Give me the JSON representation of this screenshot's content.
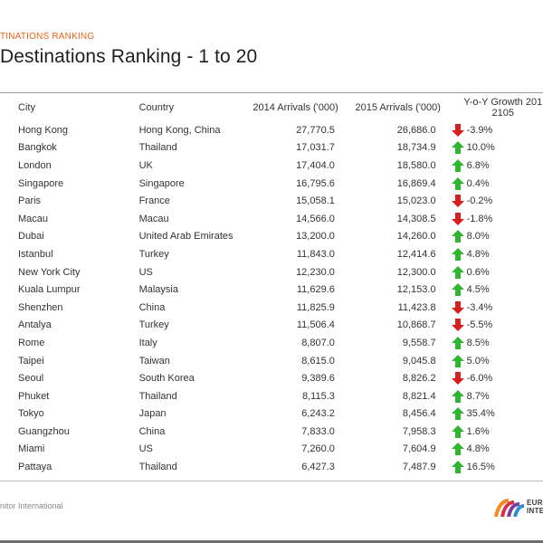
{
  "slide": {
    "section_label": "TINATIONS RANKING",
    "title": "Destinations Ranking - 1 to 20"
  },
  "table": {
    "headers": {
      "city": "City",
      "country": "Country",
      "arrivals_2014": "2014 Arrivals ('000)",
      "arrivals_2015": "2015 Arrivals ('000)",
      "growth_line1": "Y-o-Y Growth 201",
      "growth_line2": "2105"
    },
    "rows": [
      {
        "city": "Hong Kong",
        "country": "Hong Kong, China",
        "a2014": "27,770.5",
        "a2015": "26,686.0",
        "growth": "-3.9%",
        "direction": "down"
      },
      {
        "city": "Bangkok",
        "country": "Thailand",
        "a2014": "17,031.7",
        "a2015": "18,734.9",
        "growth": "10.0%",
        "direction": "up"
      },
      {
        "city": "London",
        "country": "UK",
        "a2014": "17,404.0",
        "a2015": "18,580.0",
        "growth": "6.8%",
        "direction": "up"
      },
      {
        "city": "Singapore",
        "country": "Singapore",
        "a2014": "16,795.6",
        "a2015": "16,869.4",
        "growth": "0.4%",
        "direction": "up"
      },
      {
        "city": "Paris",
        "country": "France",
        "a2014": "15,058.1",
        "a2015": "15,023.0",
        "growth": "-0.2%",
        "direction": "down"
      },
      {
        "city": "Macau",
        "country": "Macau",
        "a2014": "14,566.0",
        "a2015": "14,308.5",
        "growth": "-1.8%",
        "direction": "down"
      },
      {
        "city": "Dubai",
        "country": "United Arab Emirates",
        "a2014": "13,200.0",
        "a2015": "14,260.0",
        "growth": "8.0%",
        "direction": "up"
      },
      {
        "city": "Istanbul",
        "country": "Turkey",
        "a2014": "11,843.0",
        "a2015": "12,414.6",
        "growth": "4.8%",
        "direction": "up"
      },
      {
        "city": "New York City",
        "country": "US",
        "a2014": "12,230.0",
        "a2015": "12,300.0",
        "growth": "0.6%",
        "direction": "up"
      },
      {
        "city": "Kuala Lumpur",
        "country": "Malaysia",
        "a2014": "11,629.6",
        "a2015": "12,153.0",
        "growth": "4.5%",
        "direction": "up"
      },
      {
        "city": "Shenzhen",
        "country": "China",
        "a2014": "11,825.9",
        "a2015": "11,423.8",
        "growth": "-3.4%",
        "direction": "down"
      },
      {
        "city": "Antalya",
        "country": "Turkey",
        "a2014": "11,506.4",
        "a2015": "10,868.7",
        "growth": "-5.5%",
        "direction": "down"
      },
      {
        "city": "Rome",
        "country": "Italy",
        "a2014": "8,807.0",
        "a2015": "9,558.7",
        "growth": "8.5%",
        "direction": "up"
      },
      {
        "city": "Taipei",
        "country": "Taiwan",
        "a2014": "8,615.0",
        "a2015": "9,045.8",
        "growth": "5.0%",
        "direction": "up"
      },
      {
        "city": "Seoul",
        "country": "South Korea",
        "a2014": "9,389.6",
        "a2015": "8,826.2",
        "growth": "-6.0%",
        "direction": "down"
      },
      {
        "city": "Phuket",
        "country": "Thailand",
        "a2014": "8,115.3",
        "a2015": "8,821.4",
        "growth": "8.7%",
        "direction": "up"
      },
      {
        "city": "Tokyo",
        "country": "Japan",
        "a2014": "6,243.2",
        "a2015": "8,456.4",
        "growth": "35.4%",
        "direction": "up"
      },
      {
        "city": "Guangzhou",
        "country": "China",
        "a2014": "7,833.0",
        "a2015": "7,958.3",
        "growth": "1.6%",
        "direction": "up"
      },
      {
        "city": "Miami",
        "country": "US",
        "a2014": "7,260.0",
        "a2015": "7,604.9",
        "growth": "4.8%",
        "direction": "up"
      },
      {
        "city": "Pattaya",
        "country": "Thailand",
        "a2014": "6,427.3",
        "a2015": "7,487.9",
        "growth": "16.5%",
        "direction": "up"
      }
    ]
  },
  "footer": {
    "source_text": "nitor International",
    "logo_line1": "EUR",
    "logo_line2": "INTE"
  },
  "colors": {
    "section_label": "#e8631a",
    "up_arrow": "#2fb52f",
    "down_arrow": "#d81e1e"
  },
  "icons": {
    "up": "arrow-up-icon",
    "down": "arrow-down-icon"
  }
}
